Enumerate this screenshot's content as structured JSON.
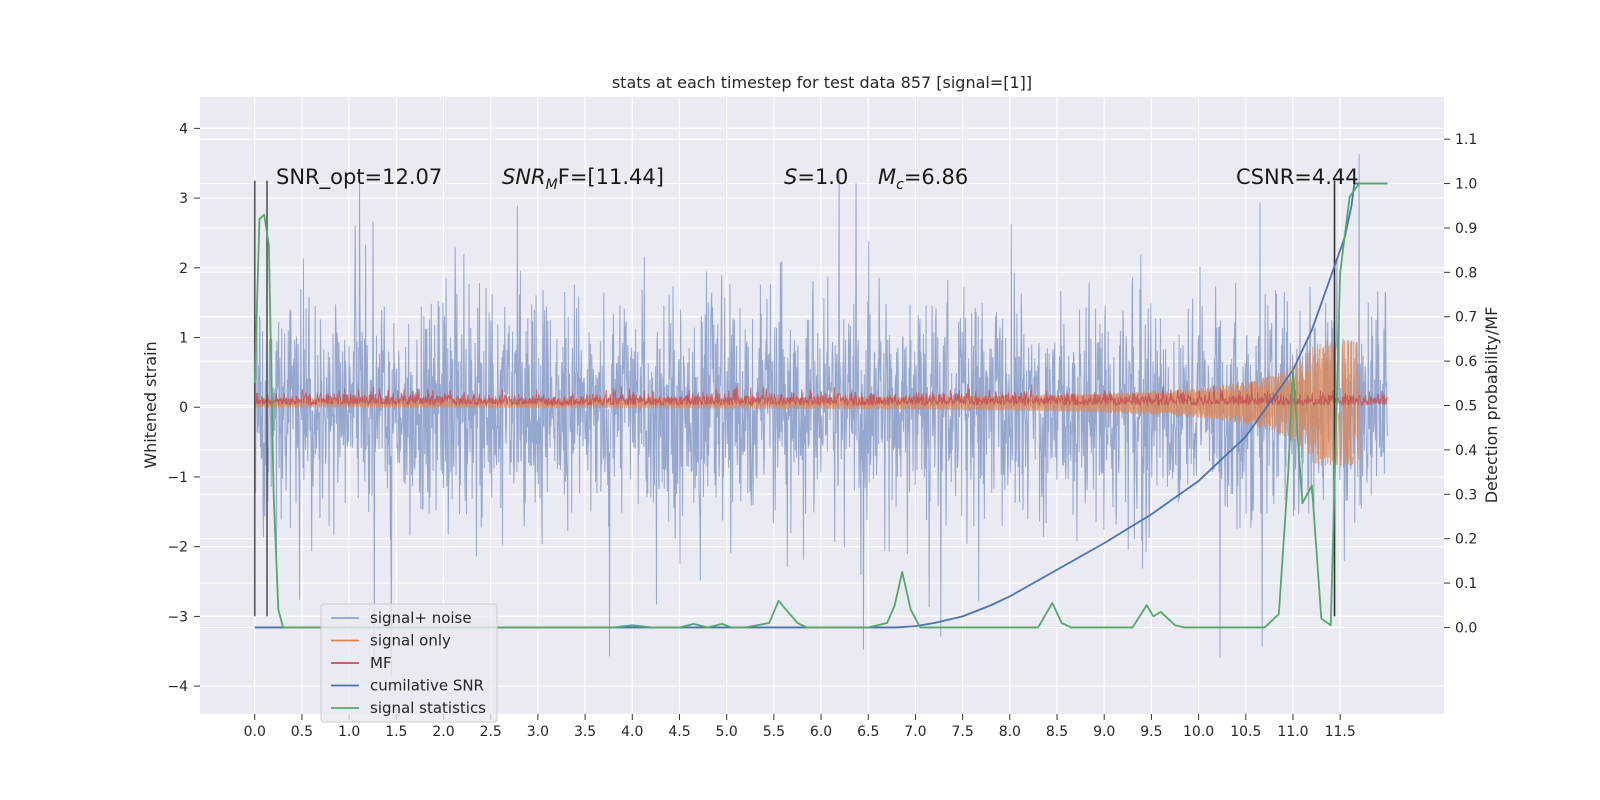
{
  "chart_data": {
    "type": "line",
    "title": "stats at each timestep for test data 857 [signal=[1]]",
    "xlabel": "",
    "ylabel": "Whitened strain",
    "y2label": "Detection probability/MF",
    "xlim": [
      -0.58,
      12.6
    ],
    "ylim": [
      -4.4,
      4.45
    ],
    "y2lim": [
      -0.195,
      1.195
    ],
    "x_ticks": [
      "0.0",
      "0.5",
      "1.0",
      "1.5",
      "2.0",
      "2.5",
      "3.0",
      "3.5",
      "4.0",
      "4.5",
      "5.0",
      "5.5",
      "6.0",
      "6.5",
      "7.0",
      "7.5",
      "8.0",
      "8.5",
      "9.0",
      "9.5",
      "10.0",
      "10.5",
      "11.0",
      "11.5"
    ],
    "y_ticks": [
      "4",
      "3",
      "2",
      "1",
      "0",
      "−1",
      "−2",
      "−3",
      "−4"
    ],
    "y2_ticks": [
      "1.1",
      "1.0",
      "0.9",
      "0.8",
      "0.7",
      "0.6",
      "0.5",
      "0.4",
      "0.3",
      "0.2",
      "0.1",
      "0.0"
    ],
    "grid": true,
    "legend_position": "lower-left",
    "annotations": {
      "snr_opt": "SNR_opt=12.07",
      "snr_mf_base": "SNR",
      "snr_mf_sub": "M",
      "snr_mf_rest": "F=[11.44]",
      "s_var": "S",
      "s_rest": "=1.0",
      "mc_var": "M",
      "mc_sub": "c",
      "mc_rest": "=6.86",
      "csnr": "CSNR=4.44"
    },
    "vertical_lines": [
      {
        "x": 0.0,
        "y_from": -3.0,
        "y_to": 3.25,
        "color": "#555555"
      },
      {
        "x": 0.13,
        "y_from": -3.0,
        "y_to": 3.25,
        "color": "#555555"
      },
      {
        "x": 11.44,
        "y_from": -3.0,
        "y_to": 3.25,
        "color": "#333333"
      }
    ],
    "colors": {
      "noise": "#8da0cb",
      "signal": "#dd8452",
      "mf": "#c44e52",
      "csnr": "#4c72b0",
      "stats": "#55a868",
      "axes_bg": "#eaeaf2",
      "grid": "#ffffff"
    },
    "series": [
      {
        "name": "signal+ noise",
        "kind": "noise",
        "x_range": [
          0,
          12.0
        ],
        "y_range_typical": [
          -1.9,
          1.9
        ],
        "y_extremes": [
          -3.85,
          4.1
        ]
      },
      {
        "name": "signal only",
        "kind": "chirp",
        "x_range": [
          0,
          11.7
        ],
        "amplitude_start": 0.05,
        "amplitude_end": 0.9
      },
      {
        "name": "MF",
        "kind": "mf",
        "x_range": [
          0,
          12.0
        ],
        "y_range": [
          0.0,
          0.35
        ]
      },
      {
        "name": "cumilative SNR",
        "kind": "line",
        "axis": "right",
        "x": [
          0.0,
          6.8,
          7.0,
          7.2,
          7.5,
          7.8,
          8.0,
          8.5,
          9.0,
          9.5,
          10.0,
          10.5,
          11.0,
          11.2,
          11.4,
          11.55,
          11.62,
          11.65,
          11.7,
          12.0
        ],
        "y": [
          0.0,
          0.0,
          0.003,
          0.01,
          0.025,
          0.05,
          0.07,
          0.13,
          0.19,
          0.255,
          0.33,
          0.43,
          0.58,
          0.67,
          0.79,
          0.88,
          0.95,
          1.0,
          1.0,
          1.0
        ]
      },
      {
        "name": "signal statistics",
        "kind": "line",
        "axis": "right",
        "x": [
          0.0,
          0.05,
          0.1,
          0.15,
          0.2,
          0.25,
          0.3,
          0.4,
          3.8,
          4.0,
          4.2,
          4.5,
          4.65,
          4.8,
          4.95,
          5.05,
          5.2,
          5.45,
          5.55,
          5.65,
          5.75,
          5.85,
          6.0,
          6.5,
          6.7,
          6.78,
          6.86,
          6.95,
          7.05,
          7.2,
          8.3,
          8.45,
          8.55,
          8.65,
          9.3,
          9.45,
          9.52,
          9.6,
          9.75,
          9.85,
          10.0,
          10.7,
          10.85,
          10.95,
          11.0,
          11.1,
          11.2,
          11.3,
          11.4,
          11.5,
          11.6,
          11.7,
          12.0
        ],
        "y": [
          0.55,
          0.92,
          0.93,
          0.86,
          0.3,
          0.04,
          0.0,
          0.0,
          0.0,
          0.005,
          0.0,
          0.0,
          0.008,
          0.0,
          0.008,
          0.0,
          0.0,
          0.01,
          0.06,
          0.035,
          0.01,
          0.0,
          0.0,
          0.0,
          0.01,
          0.05,
          0.125,
          0.04,
          0.0,
          0.0,
          0.0,
          0.055,
          0.01,
          0.0,
          0.0,
          0.05,
          0.025,
          0.035,
          0.005,
          0.0,
          0.0,
          0.0,
          0.03,
          0.35,
          0.58,
          0.28,
          0.32,
          0.02,
          0.005,
          0.8,
          0.97,
          1.0,
          1.0
        ]
      }
    ]
  }
}
